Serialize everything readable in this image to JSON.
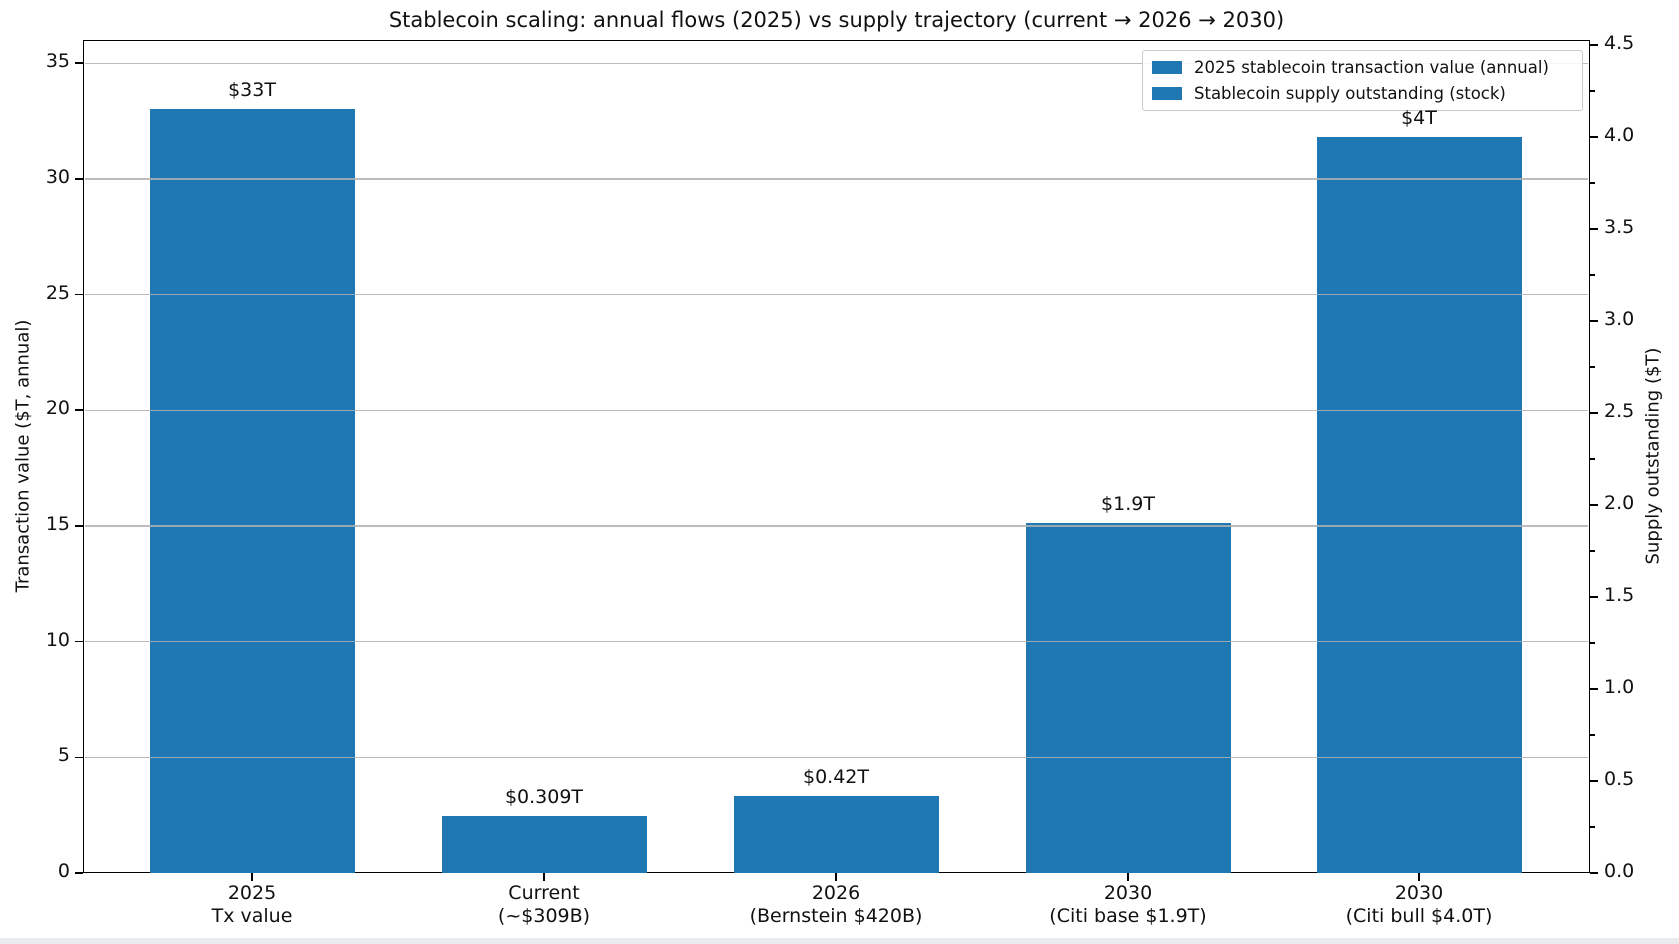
{
  "figure": {
    "title": "Stablecoin scaling: annual flows (2025) vs supply trajectory (current → 2026 → 2030)"
  },
  "chart_data": {
    "type": "bar",
    "title": "Stablecoin scaling: annual flows (2025) vs supply trajectory (current → 2026 → 2030)",
    "dual_axis": true,
    "left_axis": {
      "label": "Transaction value ($T, annual)",
      "ticks": [
        0,
        5,
        10,
        15,
        20,
        25,
        30,
        35
      ],
      "tick_labels": [
        "0",
        "5",
        "10",
        "15",
        "20",
        "25",
        "30",
        "35"
      ],
      "range": [
        0,
        36.0
      ],
      "grid": true
    },
    "right_axis": {
      "label": "Supply outstanding ($T)",
      "ticks": [
        0.0,
        0.5,
        1.0,
        1.5,
        2.0,
        2.5,
        3.0,
        3.5,
        4.0,
        4.5
      ],
      "tick_labels": [
        "0.0",
        "0.5",
        "1.0",
        "1.5",
        "2.0",
        "2.5",
        "3.0",
        "3.5",
        "4.0",
        "4.5"
      ],
      "range": [
        0,
        4.527
      ],
      "minor_tick_step": 0.25,
      "grid": false
    },
    "categories": [
      [
        "2025",
        "Tx value"
      ],
      [
        "Current",
        "(~$309B)"
      ],
      [
        "2026",
        "(Bernstein $420B)"
      ],
      [
        "2030",
        "(Citi base $1.9T)"
      ],
      [
        "2030",
        "(Citi bull $4.0T)"
      ]
    ],
    "bars": [
      {
        "category": "2025 Tx value",
        "value": 33,
        "axis": "left",
        "label": "$33T"
      },
      {
        "category": "Current (~$309B)",
        "value": 0.309,
        "axis": "right",
        "label": "$0.309T"
      },
      {
        "category": "2026 (Bernstein $420B)",
        "value": 0.42,
        "axis": "right",
        "label": "$0.42T"
      },
      {
        "category": "2030 (Citi base $1.9T)",
        "value": 1.9,
        "axis": "right",
        "label": "$1.9T"
      },
      {
        "category": "2030 (Citi bull $4.0T)",
        "value": 4.0,
        "axis": "right",
        "label": "$4T"
      }
    ],
    "legend": {
      "position": "upper right",
      "entries": [
        "2025 stablecoin transaction value (annual)",
        "Stablecoin supply outstanding (stock)"
      ]
    },
    "colors": {
      "bar": "#1f77b4",
      "grid": "#b0b0b0",
      "spine": "#000000",
      "background": "#ffffff"
    }
  }
}
